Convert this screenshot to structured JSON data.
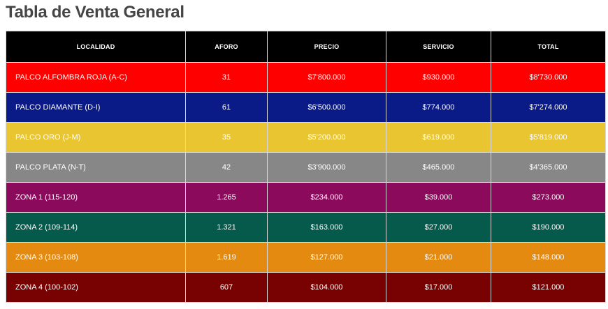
{
  "title": "Tabla de Venta General",
  "table": {
    "headers": [
      "LOCALIDAD",
      "AFORO",
      "PRECIO",
      "SERVICIO",
      "TOTAL"
    ],
    "rows": [
      {
        "localidad": "PALCO ALFOMBRA ROJA (A-C)",
        "aforo": "31",
        "precio": "$7'800.000",
        "servicio": "$930.000",
        "total": "$8'730.000",
        "color": "#fe0000"
      },
      {
        "localidad": "PALCO DIAMANTE (D-I)",
        "aforo": "61",
        "precio": "$6'500.000",
        "servicio": "$774.000",
        "total": "$7'274.000",
        "color": "#0a1a86"
      },
      {
        "localidad": "PALCO ORO (J-M)",
        "aforo": "35",
        "precio": "$5'200.000",
        "servicio": "$619.000",
        "total": "$5'819.000",
        "color": "#e8c531"
      },
      {
        "localidad": "PALCO PLATA (N-T)",
        "aforo": "42",
        "precio": "$3'900.000",
        "servicio": "$465.000",
        "total": "$4'365.000",
        "color": "#878787"
      },
      {
        "localidad": "ZONA 1 (115-120)",
        "aforo": "1.265",
        "precio": "$234.000",
        "servicio": "$39.000",
        "total": "$273.000",
        "color": "#8b0a5b"
      },
      {
        "localidad": "ZONA 2 (109-114)",
        "aforo": "1.321",
        "precio": "$163.000",
        "servicio": "$27.000",
        "total": "$190.000",
        "color": "#055a4b"
      },
      {
        "localidad": "ZONA 3 (103-108)",
        "aforo": "1.619",
        "precio": "$127.000",
        "servicio": "$21.000",
        "total": "$148.000",
        "color": "#e58a10"
      },
      {
        "localidad": "ZONA 4 (100-102)",
        "aforo": "607",
        "precio": "$104.000",
        "servicio": "$17.000",
        "total": "$121.000",
        "color": "#780202"
      }
    ]
  }
}
